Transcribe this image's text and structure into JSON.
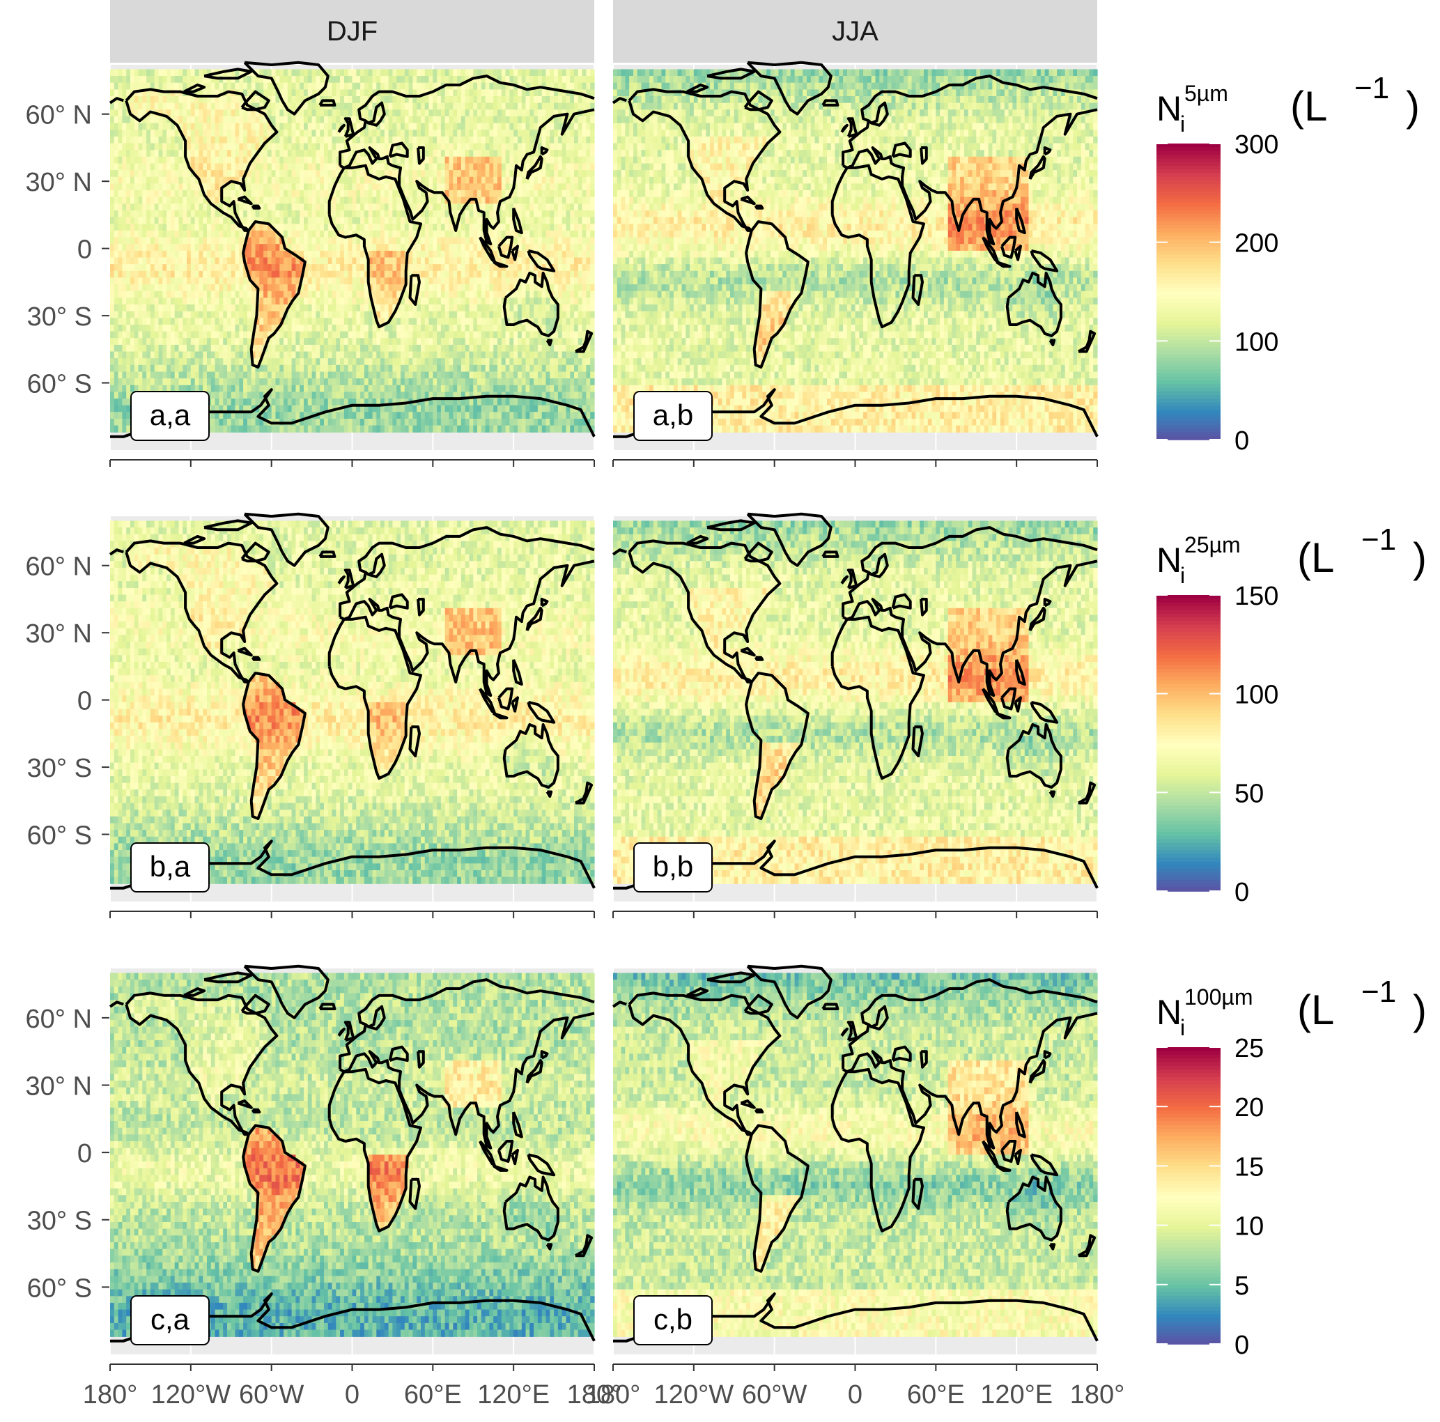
{
  "chart_data": {
    "type": "heatmap",
    "facet_columns": [
      "DJF",
      "JJA"
    ],
    "panel_labels": [
      [
        "a,a",
        "a,b"
      ],
      [
        "b,a",
        "b,b"
      ],
      [
        "c,a",
        "c,b"
      ]
    ],
    "x_tick_labels": [
      "180°",
      "120°W",
      "60°W",
      "0",
      "60°E",
      "120°E",
      "180°"
    ],
    "x_tick_values": [
      -180,
      -120,
      -60,
      0,
      60,
      120,
      180
    ],
    "y_tick_labels": [
      "60° N",
      "30° N",
      "0",
      "30° S",
      "60° S"
    ],
    "y_tick_values": [
      60,
      30,
      0,
      -30,
      -60
    ],
    "xlim": [
      -180,
      180
    ],
    "ylim": [
      -90,
      82
    ],
    "grid": true,
    "colorscale": [
      "#5e4fa2",
      "#3288bd",
      "#66c2a5",
      "#abdda4",
      "#e6f598",
      "#ffffbf",
      "#fee08b",
      "#fdae61",
      "#f46d43",
      "#d53e4f",
      "#9e0142"
    ],
    "rows": [
      {
        "legend": {
          "symbol": "N",
          "subscript": "i",
          "superscript": "5µm",
          "unit": "(L",
          "exponent": "−1",
          "close": ")"
        },
        "range": [
          0,
          300
        ],
        "ticks": [
          "300",
          "200",
          "100",
          "0"
        ],
        "tick_values": [
          300,
          200,
          100,
          0
        ]
      },
      {
        "legend": {
          "symbol": "N",
          "subscript": "i",
          "superscript": "25µm",
          "unit": "(L",
          "exponent": "−1",
          "close": ")"
        },
        "range": [
          0,
          150
        ],
        "ticks": [
          "150",
          "100",
          "50",
          "0"
        ],
        "tick_values": [
          150,
          100,
          50,
          0
        ]
      },
      {
        "legend": {
          "symbol": "N",
          "subscript": "i",
          "superscript": "100µm",
          "unit": "(L",
          "exponent": "−1",
          "close": ")"
        },
        "range": [
          0,
          25
        ],
        "ticks": [
          "25",
          "20",
          "15",
          "10",
          "5",
          "0"
        ],
        "tick_values": [
          25,
          20,
          15,
          10,
          5,
          0
        ]
      }
    ]
  }
}
